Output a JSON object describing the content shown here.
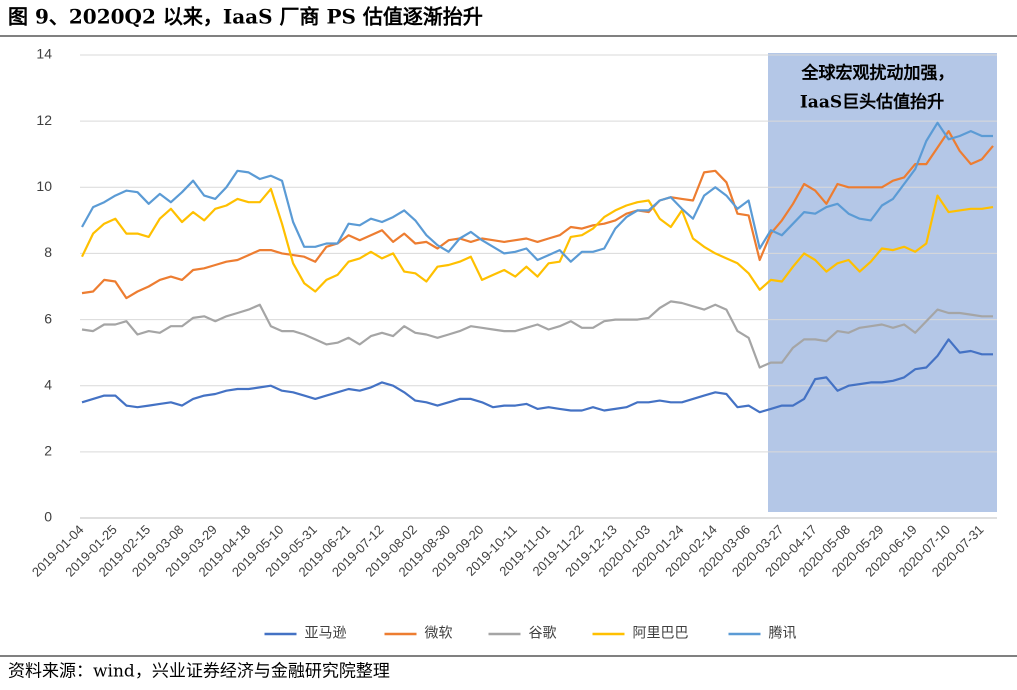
{
  "chart_data": {
    "type": "line",
    "title": "图 9、2020Q2 以来，IaaS 厂商 PS 估值逐渐抬升",
    "source": "资料来源：wind，兴业证券经济与金融研究院整理",
    "annotation": [
      "全球宏观扰动加强，",
      "IaaS巨头估值抬升"
    ],
    "categories": [
      "2019-01-04",
      null,
      null,
      "2019-01-25",
      null,
      null,
      "2019-02-15",
      null,
      null,
      "2019-03-08",
      null,
      null,
      "2019-03-29",
      null,
      null,
      "2019-04-18",
      null,
      null,
      "2019-05-10",
      null,
      null,
      "2019-05-31",
      null,
      null,
      "2019-06-21",
      null,
      null,
      "2019-07-12",
      null,
      null,
      "2019-08-02",
      null,
      null,
      "2019-08-30",
      null,
      null,
      "2019-09-20",
      null,
      null,
      "2019-10-11",
      null,
      null,
      "2019-11-01",
      null,
      null,
      "2019-11-22",
      null,
      null,
      "2019-12-13",
      null,
      null,
      "2020-01-03",
      null,
      null,
      "2020-01-24",
      null,
      null,
      "2020-02-14",
      null,
      null,
      "2020-03-06",
      null,
      null,
      "2020-03-27",
      null,
      null,
      "2020-04-17",
      null,
      null,
      "2020-05-08",
      null,
      null,
      "2020-05-29",
      null,
      null,
      "2020-06-19",
      null,
      null,
      "2020-07-10",
      null,
      null,
      "2020-07-31",
      null
    ],
    "series": [
      {
        "name": "亚马逊",
        "color": "#4472c4",
        "values": [
          3.5,
          3.6,
          3.7,
          3.7,
          3.4,
          3.35,
          3.4,
          3.45,
          3.5,
          3.4,
          3.6,
          3.7,
          3.75,
          3.85,
          3.9,
          3.9,
          3.95,
          4.0,
          3.85,
          3.8,
          3.7,
          3.6,
          3.7,
          3.8,
          3.9,
          3.85,
          3.95,
          4.1,
          4.0,
          3.8,
          3.55,
          3.5,
          3.4,
          3.5,
          3.6,
          3.6,
          3.5,
          3.35,
          3.4,
          3.4,
          3.45,
          3.3,
          3.35,
          3.3,
          3.25,
          3.25,
          3.35,
          3.25,
          3.3,
          3.35,
          3.5,
          3.5,
          3.55,
          3.5,
          3.5,
          3.6,
          3.7,
          3.8,
          3.75,
          3.35,
          3.4,
          3.2,
          3.3,
          3.4,
          3.4,
          3.6,
          4.2,
          4.25,
          3.85,
          4.0,
          4.05,
          4.1,
          4.1,
          4.15,
          4.25,
          4.5,
          4.55,
          4.9,
          5.4,
          5.0,
          5.05,
          4.95,
          4.95
        ]
      },
      {
        "name": "微软",
        "color": "#ed7d31",
        "values": [
          6.8,
          6.85,
          7.2,
          7.15,
          6.65,
          6.85,
          7.0,
          7.2,
          7.3,
          7.2,
          7.5,
          7.55,
          7.65,
          7.75,
          7.8,
          7.95,
          8.1,
          8.1,
          8.0,
          7.95,
          7.9,
          7.75,
          8.2,
          8.3,
          8.55,
          8.4,
          8.55,
          8.7,
          8.35,
          8.6,
          8.3,
          8.35,
          8.15,
          8.4,
          8.45,
          8.35,
          8.45,
          8.4,
          8.35,
          8.4,
          8.45,
          8.35,
          8.45,
          8.55,
          8.8,
          8.75,
          8.85,
          8.9,
          9.0,
          9.2,
          9.3,
          9.25,
          9.6,
          9.7,
          9.65,
          9.6,
          10.45,
          10.5,
          10.15,
          9.2,
          9.15,
          7.8,
          8.6,
          9.0,
          9.5,
          10.1,
          9.9,
          9.5,
          10.1,
          10.0,
          10.0,
          10.0,
          10.0,
          10.2,
          10.3,
          10.7,
          10.7,
          11.2,
          11.7,
          11.1,
          10.7,
          10.85,
          11.25
        ]
      },
      {
        "name": "谷歌",
        "color": "#a5a5a5",
        "values": [
          5.7,
          5.65,
          5.85,
          5.85,
          5.95,
          5.55,
          5.65,
          5.6,
          5.8,
          5.8,
          6.05,
          6.1,
          5.95,
          6.1,
          6.2,
          6.3,
          6.45,
          5.8,
          5.65,
          5.65,
          5.55,
          5.4,
          5.25,
          5.3,
          5.45,
          5.25,
          5.5,
          5.6,
          5.5,
          5.8,
          5.6,
          5.55,
          5.45,
          5.55,
          5.65,
          5.8,
          5.75,
          5.7,
          5.65,
          5.65,
          5.75,
          5.85,
          5.7,
          5.8,
          5.95,
          5.75,
          5.75,
          5.95,
          6.0,
          6.0,
          6.0,
          6.05,
          6.35,
          6.55,
          6.5,
          6.4,
          6.3,
          6.45,
          6.3,
          5.65,
          5.45,
          4.55,
          4.7,
          4.7,
          5.15,
          5.4,
          5.4,
          5.35,
          5.65,
          5.6,
          5.75,
          5.8,
          5.85,
          5.75,
          5.85,
          5.6,
          5.95,
          6.3,
          6.2,
          6.2,
          6.15,
          6.1,
          6.1
        ]
      },
      {
        "name": "阿里巴巴",
        "color": "#ffc000",
        "values": [
          7.9,
          8.6,
          8.9,
          9.05,
          8.6,
          8.6,
          8.5,
          9.05,
          9.35,
          8.95,
          9.25,
          9.0,
          9.35,
          9.45,
          9.65,
          9.55,
          9.55,
          9.95,
          8.9,
          7.7,
          7.1,
          6.85,
          7.2,
          7.35,
          7.75,
          7.85,
          8.05,
          7.85,
          8.0,
          7.45,
          7.4,
          7.15,
          7.6,
          7.65,
          7.75,
          7.9,
          7.2,
          7.35,
          7.5,
          7.3,
          7.6,
          7.3,
          7.7,
          7.75,
          8.5,
          8.55,
          8.75,
          9.1,
          9.3,
          9.45,
          9.55,
          9.6,
          9.05,
          8.8,
          9.3,
          8.45,
          8.2,
          8.0,
          7.85,
          7.7,
          7.4,
          6.9,
          7.2,
          7.15,
          7.6,
          8.0,
          7.8,
          7.45,
          7.7,
          7.8,
          7.45,
          7.75,
          8.15,
          8.1,
          8.2,
          8.05,
          8.3,
          9.75,
          9.25,
          9.3,
          9.35,
          9.35,
          9.4
        ]
      },
      {
        "name": "腾讯",
        "color": "#5b9bd5",
        "values": [
          8.8,
          9.4,
          9.55,
          9.75,
          9.9,
          9.85,
          9.5,
          9.8,
          9.55,
          9.85,
          10.2,
          9.75,
          9.65,
          10.0,
          10.5,
          10.45,
          10.25,
          10.35,
          10.2,
          8.95,
          8.2,
          8.2,
          8.3,
          8.3,
          8.9,
          8.85,
          9.05,
          8.95,
          9.1,
          9.3,
          9.0,
          8.55,
          8.25,
          8.05,
          8.45,
          8.65,
          8.4,
          8.2,
          8.0,
          8.05,
          8.15,
          7.8,
          7.95,
          8.1,
          7.75,
          8.05,
          8.05,
          8.15,
          8.75,
          9.1,
          9.3,
          9.3,
          9.6,
          9.7,
          9.35,
          9.05,
          9.75,
          10.0,
          9.75,
          9.35,
          9.6,
          8.15,
          8.7,
          8.55,
          8.9,
          9.25,
          9.2,
          9.4,
          9.5,
          9.2,
          9.05,
          9.0,
          9.45,
          9.65,
          10.1,
          10.55,
          11.4,
          11.95,
          11.45,
          11.55,
          11.7,
          11.55,
          11.55
        ]
      }
    ],
    "ylim": [
      0,
      14
    ],
    "yticks": [
      0,
      2,
      4,
      6,
      8,
      10,
      12,
      14
    ],
    "grid": true,
    "legend": "bottom"
  }
}
